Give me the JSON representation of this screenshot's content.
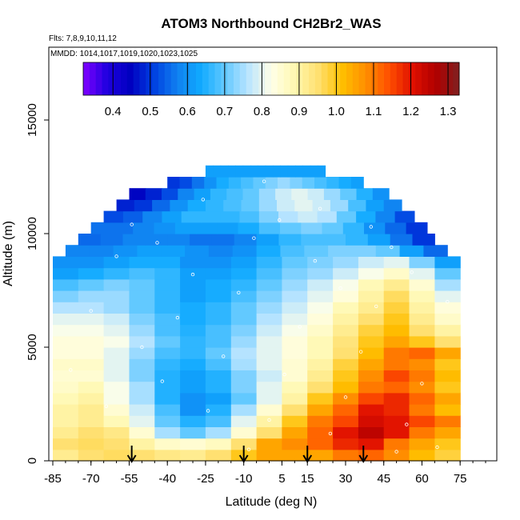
{
  "chart_data": {
    "type": "heatmap",
    "title": "ATOM3 Northbound CH2Br2_WAS",
    "flights_label": "Flts: 7,8,9,10,11,12",
    "dates_label": "MMDD: 1014,1017,1019,1020,1023,1025",
    "xlabel": "Latitude (deg N)",
    "ylabel": "Altitude (m)",
    "xlim": [
      -85,
      85
    ],
    "ylim": [
      0,
      17500
    ],
    "x_ticks": [
      "-85",
      "-70",
      "-55",
      "-40",
      "-25",
      "-10",
      "5",
      "15",
      "30",
      "45",
      "60",
      "75"
    ],
    "y_ticks": [
      "0",
      "5000",
      "10000",
      "15000"
    ],
    "colorbar": {
      "min": 0.32,
      "max": 1.33,
      "ticks": [
        "0.4",
        "0.5",
        "0.6",
        "0.7",
        "0.8",
        "0.9",
        "1.0",
        "1.1",
        "1.2",
        "1.3"
      ],
      "colors": [
        "#8000ff",
        "#2000e0",
        "#0000c0",
        "#0040e0",
        "#1080f0",
        "#10aaff",
        "#60c8ff",
        "#b8e4ff",
        "#ffffe8",
        "#fff8b0",
        "#ffe070",
        "#ffc000",
        "#ff9000",
        "#ff5000",
        "#e01000",
        "#b00000",
        "#802020"
      ]
    },
    "arrow_latitudes": [
      -54,
      -10,
      15,
      37
    ],
    "altitude_bands": [
      {
        "alt": 250,
        "lat_range": [
          -85,
          75
        ],
        "values": [
          0.92,
          0.95,
          0.96,
          0.95,
          0.93,
          0.92,
          0.95,
          1.0,
          1.05,
          1.05,
          1.05,
          1.1,
          1.12,
          1.08,
          1.02,
          0.98
        ]
      },
      {
        "alt": 750,
        "lat_range": [
          -85,
          75
        ],
        "values": [
          0.95,
          0.96,
          0.95,
          0.9,
          0.86,
          0.85,
          0.87,
          0.95,
          1.05,
          1.08,
          1.12,
          1.18,
          1.2,
          1.1,
          1.05,
          1.0
        ]
      },
      {
        "alt": 1250,
        "lat_range": [
          -85,
          75
        ],
        "values": [
          0.92,
          0.95,
          0.93,
          0.85,
          0.75,
          0.7,
          0.75,
          0.85,
          0.95,
          1.05,
          1.12,
          1.2,
          1.25,
          1.2,
          1.1,
          1.05
        ]
      },
      {
        "alt": 1750,
        "lat_range": [
          -85,
          75
        ],
        "values": [
          0.9,
          0.92,
          0.88,
          0.8,
          0.7,
          0.65,
          0.68,
          0.8,
          0.9,
          1.0,
          1.1,
          1.15,
          1.22,
          1.2,
          1.15,
          1.1
        ]
      },
      {
        "alt": 2250,
        "lat_range": [
          -85,
          75
        ],
        "values": [
          0.9,
          0.92,
          0.85,
          0.78,
          0.68,
          0.6,
          0.65,
          0.75,
          0.85,
          0.95,
          1.05,
          1.12,
          1.2,
          1.18,
          1.1,
          1.02
        ]
      },
      {
        "alt": 2750,
        "lat_range": [
          -85,
          75
        ],
        "values": [
          0.88,
          0.9,
          0.82,
          0.75,
          0.65,
          0.6,
          0.62,
          0.7,
          0.8,
          0.9,
          1.0,
          1.08,
          1.15,
          1.18,
          1.12,
          1.05
        ]
      },
      {
        "alt": 3250,
        "lat_range": [
          -85,
          75
        ],
        "values": [
          0.86,
          0.88,
          0.82,
          0.75,
          0.65,
          0.62,
          0.65,
          0.72,
          0.8,
          0.88,
          0.95,
          1.02,
          1.1,
          1.12,
          1.08,
          1.0
        ]
      },
      {
        "alt": 3750,
        "lat_range": [
          -85,
          75
        ],
        "values": [
          0.85,
          0.85,
          0.8,
          0.72,
          0.65,
          0.62,
          0.65,
          0.72,
          0.78,
          0.85,
          0.92,
          1.0,
          1.08,
          1.15,
          1.1,
          1.02
        ]
      },
      {
        "alt": 4250,
        "lat_range": [
          -85,
          75
        ],
        "values": [
          0.86,
          0.86,
          0.8,
          0.72,
          0.66,
          0.64,
          0.68,
          0.75,
          0.8,
          0.85,
          0.9,
          0.98,
          1.05,
          1.1,
          1.08,
          1.0
        ]
      },
      {
        "alt": 4750,
        "lat_range": [
          -85,
          75
        ],
        "values": [
          0.84,
          0.84,
          0.8,
          0.74,
          0.68,
          0.66,
          0.7,
          0.76,
          0.8,
          0.84,
          0.88,
          0.95,
          1.02,
          1.1,
          1.12,
          1.05
        ]
      },
      {
        "alt": 5250,
        "lat_range": [
          -85,
          75
        ],
        "values": [
          0.84,
          0.84,
          0.82,
          0.76,
          0.7,
          0.66,
          0.68,
          0.74,
          0.8,
          0.84,
          0.88,
          0.94,
          1.0,
          1.05,
          1.0,
          0.95
        ]
      },
      {
        "alt": 5750,
        "lat_range": [
          -85,
          75
        ],
        "values": [
          0.82,
          0.82,
          0.8,
          0.74,
          0.68,
          0.65,
          0.68,
          0.72,
          0.78,
          0.82,
          0.86,
          0.92,
          0.98,
          1.02,
          0.95,
          0.9
        ]
      },
      {
        "alt": 6250,
        "lat_range": [
          -85,
          75
        ],
        "values": [
          0.8,
          0.8,
          0.78,
          0.72,
          0.68,
          0.64,
          0.66,
          0.7,
          0.76,
          0.8,
          0.84,
          0.9,
          0.95,
          1.0,
          0.92,
          0.86
        ]
      },
      {
        "alt": 6750,
        "lat_range": [
          -85,
          75
        ],
        "values": [
          0.76,
          0.76,
          0.74,
          0.7,
          0.66,
          0.64,
          0.66,
          0.7,
          0.74,
          0.78,
          0.82,
          0.88,
          0.92,
          0.98,
          0.9,
          0.84
        ]
      },
      {
        "alt": 7250,
        "lat_range": [
          -85,
          75
        ],
        "values": [
          0.72,
          0.74,
          0.74,
          0.7,
          0.66,
          0.62,
          0.64,
          0.68,
          0.72,
          0.76,
          0.8,
          0.84,
          0.9,
          0.96,
          0.88,
          0.8
        ]
      },
      {
        "alt": 7750,
        "lat_range": [
          -85,
          75
        ],
        "values": [
          0.68,
          0.7,
          0.72,
          0.7,
          0.66,
          0.62,
          0.64,
          0.66,
          0.7,
          0.74,
          0.78,
          0.82,
          0.88,
          0.92,
          0.85,
          0.75
        ]
      },
      {
        "alt": 8250,
        "lat_range": [
          -85,
          75
        ],
        "values": [
          0.62,
          0.64,
          0.66,
          0.68,
          0.66,
          0.62,
          0.62,
          0.64,
          0.68,
          0.72,
          0.74,
          0.78,
          0.82,
          0.86,
          0.8,
          0.7
        ]
      },
      {
        "alt": 8750,
        "lat_range": [
          -85,
          75
        ],
        "values": [
          0.6,
          0.6,
          0.62,
          0.64,
          0.64,
          0.6,
          0.6,
          0.62,
          0.66,
          0.7,
          0.72,
          0.74,
          0.78,
          0.8,
          0.72,
          0.62
        ]
      },
      {
        "alt": 9250,
        "lat_range": [
          -80,
          70
        ],
        "values": [
          0.58,
          0.58,
          0.6,
          0.62,
          0.62,
          0.6,
          0.58,
          0.6,
          0.64,
          0.68,
          0.7,
          0.72,
          0.72,
          0.7,
          0.62,
          0.55
        ]
      },
      {
        "alt": 9750,
        "lat_range": [
          -75,
          65
        ],
        "values": [
          0.55,
          0.56,
          0.58,
          0.58,
          0.58,
          0.56,
          0.56,
          0.58,
          0.62,
          0.66,
          0.68,
          0.68,
          0.66,
          0.62,
          0.56,
          0.5
        ]
      },
      {
        "alt": 10250,
        "lat_range": [
          -70,
          62
        ],
        "values": [
          0.56,
          0.56,
          0.58,
          0.6,
          0.62,
          0.62,
          0.62,
          0.64,
          0.68,
          0.7,
          0.72,
          0.7,
          0.66,
          0.6,
          0.55,
          0.5
        ]
      },
      {
        "alt": 10750,
        "lat_range": [
          -65,
          57
        ],
        "values": [
          0.52,
          0.54,
          0.58,
          0.62,
          0.66,
          0.66,
          0.66,
          0.68,
          0.72,
          0.76,
          0.78,
          0.76,
          0.7,
          0.64,
          0.58,
          0.52
        ]
      },
      {
        "alt": 11250,
        "lat_range": [
          -60,
          52
        ],
        "values": [
          0.48,
          0.5,
          0.55,
          0.6,
          0.64,
          0.66,
          0.68,
          0.7,
          0.74,
          0.78,
          0.8,
          0.78,
          0.74,
          0.68,
          0.62,
          0.58
        ]
      },
      {
        "alt": 11750,
        "lat_range": [
          -55,
          47
        ],
        "values": [
          0.45,
          0.48,
          0.52,
          0.58,
          0.62,
          0.66,
          0.68,
          0.7,
          0.74,
          0.78,
          0.8,
          0.78,
          0.74,
          0.7,
          0.65,
          0.6
        ]
      },
      {
        "alt": 12250,
        "lat_range": [
          -40,
          37
        ],
        "values": [
          0.5,
          0.52,
          0.56,
          0.6,
          0.64,
          0.66,
          0.68,
          0.7,
          0.72,
          0.74,
          0.72,
          0.7,
          0.68,
          0.66,
          0.64,
          0.62
        ]
      },
      {
        "alt": 12750,
        "lat_range": [
          -25,
          22
        ],
        "values": [
          0.62,
          0.62,
          0.62,
          0.62,
          0.62,
          0.62,
          0.62,
          0.62,
          0.62,
          0.62,
          0.62,
          0.62,
          0.62,
          0.62,
          0.62,
          0.62
        ]
      }
    ],
    "sample_points": [
      {
        "lat": -50,
        "alt": 5000
      },
      {
        "lat": -42,
        "alt": 3500
      },
      {
        "lat": -36,
        "alt": 6300
      },
      {
        "lat": -30,
        "alt": 8200
      },
      {
        "lat": -24,
        "alt": 2200
      },
      {
        "lat": -18,
        "alt": 4600
      },
      {
        "lat": -12,
        "alt": 7400
      },
      {
        "lat": -6,
        "alt": 9800
      },
      {
        "lat": 0,
        "alt": 1800
      },
      {
        "lat": 6,
        "alt": 3800
      },
      {
        "lat": 12,
        "alt": 5900
      },
      {
        "lat": 18,
        "alt": 8800
      },
      {
        "lat": 24,
        "alt": 1200
      },
      {
        "lat": 30,
        "alt": 2800
      },
      {
        "lat": 36,
        "alt": 4800
      },
      {
        "lat": 42,
        "alt": 6800
      },
      {
        "lat": 48,
        "alt": 9400
      },
      {
        "lat": 54,
        "alt": 1600
      },
      {
        "lat": 60,
        "alt": 3400
      },
      {
        "lat": 66,
        "alt": 600
      },
      {
        "lat": -60,
        "alt": 9000
      },
      {
        "lat": -54,
        "alt": 10400
      },
      {
        "lat": -26,
        "alt": 11500
      },
      {
        "lat": -2,
        "alt": 12300
      },
      {
        "lat": 20,
        "alt": 11100
      },
      {
        "lat": 40,
        "alt": 10300
      },
      {
        "lat": 56,
        "alt": 8300
      },
      {
        "lat": 70,
        "alt": 7000
      },
      {
        "lat": -70,
        "alt": 6600
      },
      {
        "lat": -78,
        "alt": 4000
      },
      {
        "lat": -64,
        "alt": 2400
      },
      {
        "lat": -8,
        "alt": 500
      },
      {
        "lat": 50,
        "alt": 400
      },
      {
        "lat": 4,
        "alt": 10600
      },
      {
        "lat": 28,
        "alt": 7600
      },
      {
        "lat": -44,
        "alt": 9600
      }
    ]
  }
}
